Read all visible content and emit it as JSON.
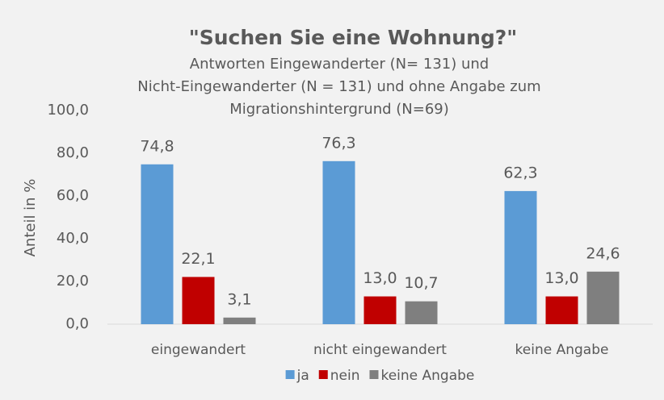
{
  "chart_data": {
    "type": "bar",
    "title": "\"Suchen Sie eine Wohnung?\"",
    "subtitle": [
      "Antworten Eingewanderter (N= 131) und",
      "Nicht-Eingewanderter (N = 131) und ohne Angabe zum",
      "Migrationshintergrund (N=69)"
    ],
    "y_label": "Anteil in %",
    "categories": [
      "eingewandert",
      "nicht eingewandert",
      "keine Angabe"
    ],
    "series": [
      {
        "name": "ja",
        "color": "#5b9bd5",
        "values": [
          74.8,
          76.3,
          62.3
        ],
        "value_labels": [
          "74,8",
          "76,3",
          "62,3"
        ]
      },
      {
        "name": "nein",
        "color": "#c00000",
        "values": [
          22.1,
          13.0,
          13.0
        ],
        "value_labels": [
          "22,1",
          "13,0",
          "13,0"
        ]
      },
      {
        "name": "keine Angabe",
        "color": "#7f7f7f",
        "values": [
          3.1,
          10.7,
          24.6
        ],
        "value_labels": [
          "3,1",
          "10,7",
          "24,6"
        ]
      }
    ],
    "ylim": [
      0,
      100
    ],
    "yticks": [
      {
        "value": 0,
        "label": "0,0"
      },
      {
        "value": 20,
        "label": "20,0"
      },
      {
        "value": 40,
        "label": "40,0"
      },
      {
        "value": 60,
        "label": "60,0"
      },
      {
        "value": 80,
        "label": "80,0"
      },
      {
        "value": 100,
        "label": "100,0"
      }
    ],
    "grid": false,
    "legend": "bottom"
  }
}
